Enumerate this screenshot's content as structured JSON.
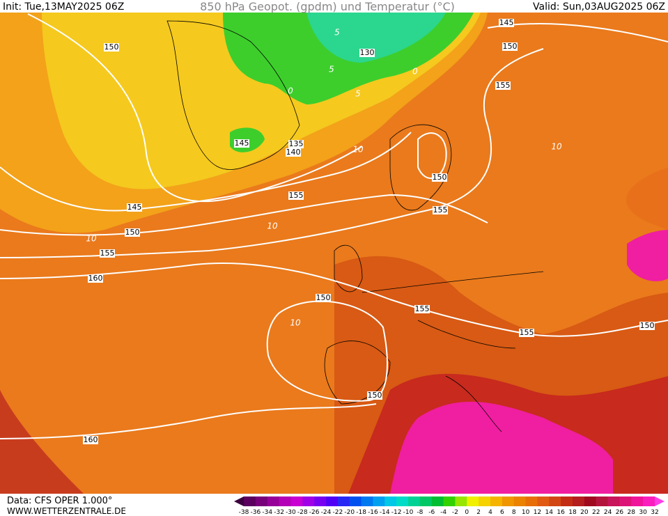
{
  "header": {
    "init": "Init: Tue,13MAY2025 06Z",
    "title": "850 hPa Geopot. (gpdm) und Temperatur (°C)",
    "valid": "Valid: Sun,03AUG2025 06Z"
  },
  "map": {
    "height_labels": [
      145,
      150,
      130,
      150,
      155,
      145,
      135,
      140,
      155,
      150,
      155,
      145,
      150,
      155,
      160,
      150,
      155,
      155,
      150,
      150,
      160
    ],
    "temperature_labels": [
      5,
      5,
      0,
      0,
      5,
      10,
      10,
      10,
      10,
      10
    ]
  },
  "footer": {
    "source": "Data: CFS OPER 1.000°",
    "site": "WWW.WETTERZENTRALE.DE"
  },
  "legend": {
    "labels": [
      -38,
      -36,
      -34,
      -32,
      -30,
      -28,
      -26,
      -24,
      -22,
      -20,
      -18,
      -16,
      -14,
      -12,
      -10,
      -8,
      -6,
      -4,
      -2,
      0,
      2,
      4,
      6,
      8,
      10,
      12,
      14,
      16,
      18,
      20,
      22,
      24,
      26,
      28,
      30,
      32
    ],
    "colors": [
      "#3c0040",
      "#5a005e",
      "#78007a",
      "#960098",
      "#b400b6",
      "#c800d2",
      "#a000e6",
      "#7800f0",
      "#5000f5",
      "#2828f5",
      "#0050f0",
      "#0078f0",
      "#00a0f0",
      "#00c8e6",
      "#00dcc8",
      "#00d296",
      "#00c864",
      "#00be32",
      "#32d200",
      "#96e600",
      "#f0f000",
      "#f5d200",
      "#f5b400",
      "#f09600",
      "#eb8200",
      "#e86e0a",
      "#e05a14",
      "#d24614",
      "#c32d14",
      "#b41e1e",
      "#a00a1e",
      "#b4143c",
      "#c8145a",
      "#dc1478",
      "#f0149b",
      "#fa1ebe",
      "#ff3ce6"
    ]
  }
}
